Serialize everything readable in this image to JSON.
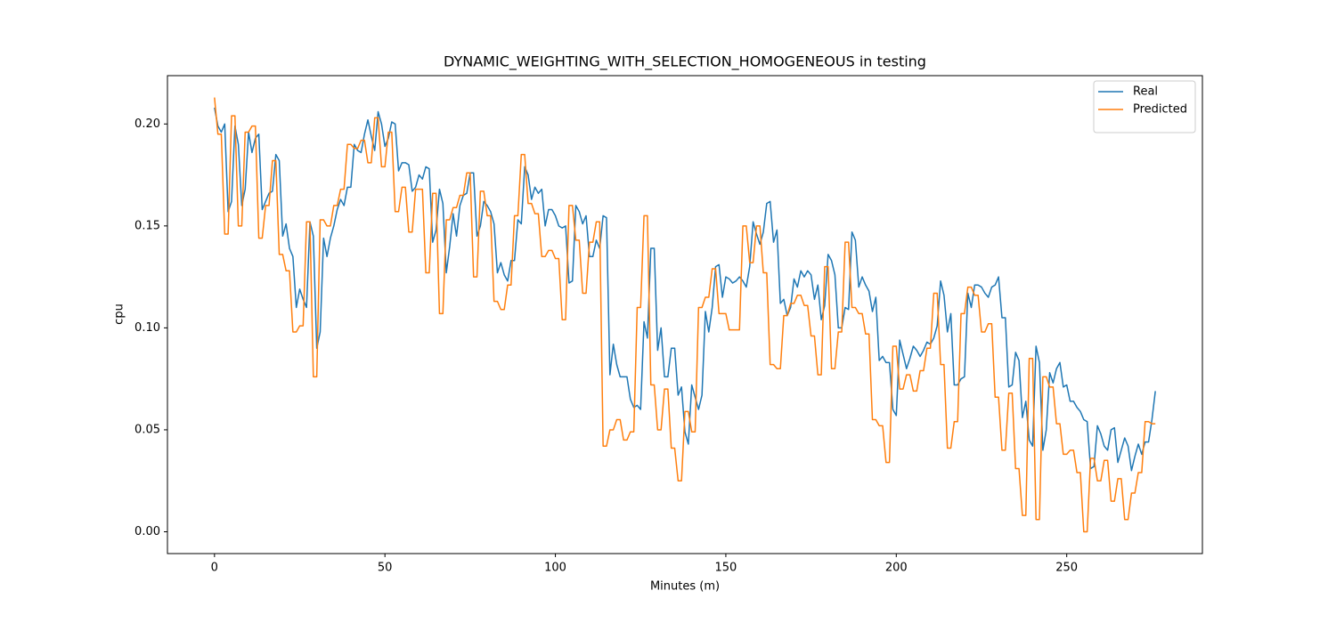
{
  "chart_data": {
    "type": "line",
    "title": "DYNAMIC_WEIGHTING_WITH_SELECTION_HOMOGENEOUS in testing",
    "x_label": "Minutes (m)",
    "y_label": "cpu",
    "x": [
      0,
      1,
      2,
      3,
      4,
      5,
      6,
      7,
      8,
      9,
      10,
      11,
      12,
      13,
      14,
      15,
      16,
      17,
      18,
      19,
      20,
      21,
      22,
      23,
      24,
      25,
      26,
      27,
      28,
      29,
      30,
      31,
      32,
      33,
      34,
      35,
      36,
      37,
      38,
      39,
      40,
      41,
      42,
      43,
      44,
      45,
      46,
      47,
      48,
      49,
      50,
      51,
      52,
      53,
      54,
      55,
      56,
      57,
      58,
      59,
      60,
      61,
      62,
      63,
      64,
      65,
      66,
      67,
      68,
      69,
      70,
      71,
      72,
      73,
      74,
      75,
      76,
      77,
      78,
      79,
      80,
      81,
      82,
      83,
      84,
      85,
      86,
      87,
      88,
      89,
      90,
      91,
      92,
      93,
      94,
      95,
      96,
      97,
      98,
      99,
      100,
      101,
      102,
      103,
      104,
      105,
      106,
      107,
      108,
      109,
      110,
      111,
      112,
      113,
      114,
      115,
      116,
      117,
      118,
      119,
      120,
      121,
      122,
      123,
      124,
      125,
      126,
      127,
      128,
      129,
      130,
      131,
      132,
      133,
      134,
      135,
      136,
      137,
      138,
      139,
      140,
      141,
      142,
      143,
      144,
      145,
      146,
      147,
      148,
      149,
      150,
      151,
      152,
      153,
      154,
      155,
      156,
      157,
      158,
      159,
      160,
      161,
      162,
      163,
      164,
      165,
      166,
      167,
      168,
      169,
      170,
      171,
      172,
      173,
      174,
      175,
      176,
      177,
      178,
      179,
      180,
      181,
      182,
      183,
      184,
      185,
      186,
      187,
      188,
      189,
      190,
      191,
      192,
      193,
      194,
      195,
      196,
      197,
      198,
      199,
      200,
      201,
      202,
      203,
      204,
      205,
      206,
      207,
      208,
      209,
      210,
      211,
      212,
      213,
      214,
      215,
      216,
      217,
      218,
      219,
      220,
      221,
      222,
      223,
      224,
      225,
      226,
      227,
      228,
      229,
      230,
      231,
      232,
      233,
      234,
      235,
      236,
      237,
      238,
      239,
      240,
      241,
      242,
      243,
      244,
      245,
      246,
      247,
      248,
      249,
      250,
      251,
      252,
      253,
      254,
      255,
      256,
      257,
      258,
      259,
      260,
      261,
      262,
      263,
      264,
      265,
      266,
      267,
      268,
      269,
      270,
      271,
      272,
      273,
      274,
      275,
      276
    ],
    "series": [
      {
        "name": "Real",
        "color": "#1f77b4",
        "values": [
          0.208,
          0.199,
          0.196,
          0.2,
          0.157,
          0.162,
          0.199,
          0.19,
          0.16,
          0.168,
          0.196,
          0.186,
          0.193,
          0.195,
          0.158,
          0.162,
          0.166,
          0.167,
          0.185,
          0.182,
          0.145,
          0.151,
          0.139,
          0.135,
          0.11,
          0.119,
          0.114,
          0.11,
          0.152,
          0.145,
          0.09,
          0.098,
          0.144,
          0.135,
          0.144,
          0.15,
          0.158,
          0.163,
          0.16,
          0.169,
          0.169,
          0.19,
          0.187,
          0.186,
          0.195,
          0.202,
          0.194,
          0.187,
          0.206,
          0.2,
          0.189,
          0.193,
          0.201,
          0.2,
          0.177,
          0.181,
          0.181,
          0.18,
          0.167,
          0.169,
          0.175,
          0.173,
          0.179,
          0.178,
          0.142,
          0.148,
          0.168,
          0.161,
          0.127,
          0.14,
          0.156,
          0.145,
          0.16,
          0.165,
          0.166,
          0.176,
          0.176,
          0.145,
          0.15,
          0.162,
          0.16,
          0.157,
          0.151,
          0.127,
          0.132,
          0.126,
          0.123,
          0.133,
          0.133,
          0.153,
          0.151,
          0.179,
          0.175,
          0.163,
          0.169,
          0.166,
          0.168,
          0.15,
          0.158,
          0.158,
          0.155,
          0.15,
          0.149,
          0.15,
          0.122,
          0.123,
          0.16,
          0.157,
          0.151,
          0.155,
          0.135,
          0.135,
          0.143,
          0.139,
          0.155,
          0.154,
          0.077,
          0.092,
          0.082,
          0.076,
          0.076,
          0.076,
          0.065,
          0.061,
          0.062,
          0.06,
          0.103,
          0.095,
          0.139,
          0.139,
          0.089,
          0.1,
          0.076,
          0.076,
          0.09,
          0.09,
          0.067,
          0.071,
          0.049,
          0.043,
          0.072,
          0.066,
          0.06,
          0.067,
          0.108,
          0.098,
          0.11,
          0.13,
          0.131,
          0.115,
          0.125,
          0.124,
          0.122,
          0.123,
          0.125,
          0.123,
          0.12,
          0.13,
          0.152,
          0.146,
          0.141,
          0.147,
          0.161,
          0.162,
          0.142,
          0.148,
          0.112,
          0.114,
          0.106,
          0.11,
          0.124,
          0.12,
          0.128,
          0.125,
          0.128,
          0.126,
          0.114,
          0.121,
          0.104,
          0.111,
          0.136,
          0.133,
          0.126,
          0.1,
          0.1,
          0.11,
          0.109,
          0.147,
          0.143,
          0.12,
          0.125,
          0.121,
          0.118,
          0.108,
          0.115,
          0.084,
          0.086,
          0.083,
          0.083,
          0.06,
          0.057,
          0.094,
          0.087,
          0.08,
          0.085,
          0.091,
          0.089,
          0.086,
          0.089,
          0.093,
          0.092,
          0.095,
          0.101,
          0.123,
          0.116,
          0.098,
          0.107,
          0.072,
          0.072,
          0.075,
          0.076,
          0.117,
          0.11,
          0.121,
          0.121,
          0.12,
          0.117,
          0.115,
          0.12,
          0.121,
          0.125,
          0.105,
          0.105,
          0.071,
          0.072,
          0.088,
          0.084,
          0.056,
          0.064,
          0.045,
          0.042,
          0.091,
          0.083,
          0.04,
          0.05,
          0.078,
          0.073,
          0.08,
          0.083,
          0.071,
          0.072,
          0.064,
          0.064,
          0.061,
          0.059,
          0.055,
          0.054,
          0.031,
          0.032,
          0.052,
          0.048,
          0.042,
          0.04,
          0.05,
          0.051,
          0.034,
          0.04,
          0.046,
          0.042,
          0.03,
          0.037,
          0.043,
          0.038,
          0.044,
          0.044,
          0.055,
          0.069
        ]
      },
      {
        "name": "Predicted",
        "color": "#ff7f0e",
        "values": [
          0.213,
          0.195,
          0.195,
          0.146,
          0.146,
          0.204,
          0.204,
          0.15,
          0.15,
          0.196,
          0.196,
          0.199,
          0.199,
          0.144,
          0.144,
          0.16,
          0.16,
          0.182,
          0.182,
          0.136,
          0.136,
          0.128,
          0.128,
          0.098,
          0.098,
          0.101,
          0.101,
          0.152,
          0.152,
          0.076,
          0.076,
          0.153,
          0.153,
          0.15,
          0.15,
          0.16,
          0.16,
          0.168,
          0.168,
          0.19,
          0.19,
          0.188,
          0.188,
          0.192,
          0.192,
          0.181,
          0.181,
          0.203,
          0.203,
          0.179,
          0.179,
          0.196,
          0.196,
          0.157,
          0.157,
          0.169,
          0.169,
          0.147,
          0.147,
          0.168,
          0.168,
          0.168,
          0.127,
          0.127,
          0.166,
          0.166,
          0.107,
          0.107,
          0.153,
          0.153,
          0.159,
          0.159,
          0.165,
          0.165,
          0.176,
          0.176,
          0.125,
          0.125,
          0.167,
          0.167,
          0.155,
          0.155,
          0.113,
          0.113,
          0.109,
          0.109,
          0.121,
          0.121,
          0.155,
          0.155,
          0.185,
          0.185,
          0.161,
          0.161,
          0.156,
          0.156,
          0.135,
          0.135,
          0.138,
          0.138,
          0.134,
          0.134,
          0.104,
          0.104,
          0.16,
          0.16,
          0.143,
          0.143,
          0.117,
          0.117,
          0.142,
          0.142,
          0.152,
          0.152,
          0.042,
          0.042,
          0.05,
          0.05,
          0.055,
          0.055,
          0.045,
          0.045,
          0.049,
          0.049,
          0.11,
          0.11,
          0.155,
          0.155,
          0.072,
          0.072,
          0.05,
          0.05,
          0.07,
          0.07,
          0.041,
          0.041,
          0.025,
          0.025,
          0.059,
          0.059,
          0.049,
          0.049,
          0.11,
          0.11,
          0.115,
          0.115,
          0.129,
          0.129,
          0.107,
          0.107,
          0.107,
          0.099,
          0.099,
          0.099,
          0.099,
          0.15,
          0.15,
          0.132,
          0.132,
          0.15,
          0.15,
          0.127,
          0.127,
          0.082,
          0.082,
          0.08,
          0.08,
          0.106,
          0.106,
          0.112,
          0.112,
          0.116,
          0.116,
          0.111,
          0.111,
          0.096,
          0.096,
          0.077,
          0.077,
          0.13,
          0.13,
          0.08,
          0.08,
          0.098,
          0.098,
          0.142,
          0.142,
          0.11,
          0.11,
          0.107,
          0.107,
          0.097,
          0.097,
          0.055,
          0.055,
          0.052,
          0.052,
          0.034,
          0.034,
          0.091,
          0.091,
          0.07,
          0.07,
          0.077,
          0.077,
          0.069,
          0.069,
          0.079,
          0.079,
          0.09,
          0.09,
          0.117,
          0.117,
          0.082,
          0.082,
          0.041,
          0.041,
          0.054,
          0.054,
          0.107,
          0.107,
          0.12,
          0.12,
          0.116,
          0.116,
          0.098,
          0.098,
          0.102,
          0.102,
          0.066,
          0.066,
          0.04,
          0.04,
          0.068,
          0.068,
          0.031,
          0.031,
          0.008,
          0.008,
          0.085,
          0.085,
          0.006,
          0.006,
          0.076,
          0.076,
          0.071,
          0.071,
          0.053,
          0.053,
          0.038,
          0.038,
          0.04,
          0.04,
          0.029,
          0.029,
          0,
          0,
          0.036,
          0.036,
          0.025,
          0.025,
          0.035,
          0.035,
          0.015,
          0.015,
          0.026,
          0.026,
          0.006,
          0.006,
          0.019,
          0.019,
          0.029,
          0.029,
          0.054,
          0.054,
          0.053,
          0.053
        ]
      }
    ],
    "xlim": [
      -13.8,
      289.8
    ],
    "xticks": [
      0,
      50,
      100,
      150,
      200,
      250
    ],
    "ylim": [
      -0.0107,
      0.2237
    ],
    "yticks": [
      {
        "value": 0,
        "label": "0.00"
      },
      0.05,
      {
        "value": 0.1,
        "label": "0.10"
      },
      0.15,
      {
        "value": 0.2,
        "label": "0.20"
      }
    ],
    "legend": "upper right",
    "grid": false
  }
}
